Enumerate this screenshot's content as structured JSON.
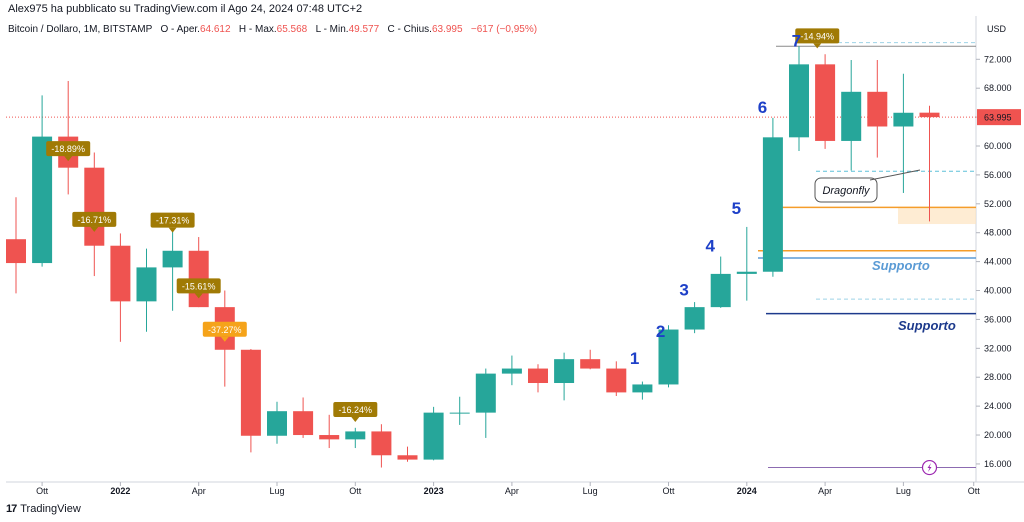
{
  "header": {
    "published": "Alex975 ha pubblicato su TradingView.com il Ago 24, 2024 07:48 UTC+2",
    "symbol": "Bitcoin / Dollaro, 1M, BITSTAMP",
    "open_label": "O - Aper.",
    "open": "64.612",
    "high_label": "H - Max.",
    "high": "65.568",
    "low_label": "L - Min.",
    "low": "49.577",
    "close_label": "C - Chius.",
    "close": "63.995",
    "change": "−617 (−0,95%)"
  },
  "footer": {
    "brand": "TradingView",
    "logo": "17"
  },
  "colors": {
    "up": "#26a69a",
    "down": "#ef5350",
    "wave_label": "#1e40c8",
    "pct_box": "#a07a05",
    "pct_box_bright": "#f5a31a",
    "support_light": "#5b9bd5",
    "support_dark": "#1d3a8c",
    "orange_line": "#f59d2a"
  },
  "chart_data": {
    "type": "candlestick",
    "title": "Bitcoin / Dollaro, 1M, BITSTAMP",
    "currency_label": "USD",
    "y_ticks": [
      "72.000",
      "68.000",
      "64.000",
      "60.000",
      "56.000",
      "52.000",
      "48.000",
      "44.000",
      "40.000",
      "36.000",
      "32.000",
      "28.000",
      "24.000",
      "20.000",
      "16.000"
    ],
    "y_tick_values": [
      72000,
      68000,
      64000,
      60000,
      56000,
      52000,
      48000,
      44000,
      40000,
      36000,
      32000,
      28000,
      24000,
      20000,
      16000
    ],
    "ylim": [
      13500,
      75500
    ],
    "x_labels": [
      "Ott",
      "2022",
      "Apr",
      "Lug",
      "Ott",
      "2023",
      "Apr",
      "Lug",
      "Ott",
      "2024",
      "Apr",
      "Lug",
      "Ott"
    ],
    "x_label_index": [
      1,
      4,
      7,
      10,
      13,
      16,
      19,
      22,
      25,
      28,
      31,
      34,
      37
    ],
    "bold_x_labels": [
      "2022",
      "2023",
      "2024"
    ],
    "current_price_label": "63.995",
    "current_price": 63995,
    "candles": [
      {
        "m": "2021-09",
        "o": 47100,
        "h": 52900,
        "l": 39600,
        "c": 43800
      },
      {
        "m": "2021-10",
        "o": 43800,
        "h": 67000,
        "l": 43300,
        "c": 61300
      },
      {
        "m": "2021-11",
        "o": 61300,
        "h": 69000,
        "l": 53300,
        "c": 57000
      },
      {
        "m": "2021-12",
        "o": 57000,
        "h": 59100,
        "l": 42000,
        "c": 46200
      },
      {
        "m": "2022-01",
        "o": 46200,
        "h": 47900,
        "l": 32900,
        "c": 38500
      },
      {
        "m": "2022-02",
        "o": 38500,
        "h": 45800,
        "l": 34300,
        "c": 43200
      },
      {
        "m": "2022-03",
        "o": 43200,
        "h": 48200,
        "l": 37200,
        "c": 45500
      },
      {
        "m": "2022-04",
        "o": 45500,
        "h": 47400,
        "l": 37700,
        "c": 37700
      },
      {
        "m": "2022-05",
        "o": 37700,
        "h": 40000,
        "l": 26700,
        "c": 31800
      },
      {
        "m": "2022-06",
        "o": 31800,
        "h": 31900,
        "l": 17600,
        "c": 19900
      },
      {
        "m": "2022-07",
        "o": 19900,
        "h": 24600,
        "l": 18800,
        "c": 23300
      },
      {
        "m": "2022-08",
        "o": 23300,
        "h": 25200,
        "l": 19600,
        "c": 20000
      },
      {
        "m": "2022-09",
        "o": 20000,
        "h": 22800,
        "l": 18200,
        "c": 19400
      },
      {
        "m": "2022-10",
        "o": 19400,
        "h": 21000,
        "l": 18200,
        "c": 20500
      },
      {
        "m": "2022-11",
        "o": 20500,
        "h": 21500,
        "l": 15500,
        "c": 17200
      },
      {
        "m": "2022-12",
        "o": 17200,
        "h": 18400,
        "l": 16300,
        "c": 16600
      },
      {
        "m": "2023-01",
        "o": 16600,
        "h": 23900,
        "l": 16500,
        "c": 23100
      },
      {
        "m": "2023-02",
        "o": 23100,
        "h": 25300,
        "l": 21400,
        "c": 23100
      },
      {
        "m": "2023-03",
        "o": 23100,
        "h": 29200,
        "l": 19600,
        "c": 28500
      },
      {
        "m": "2023-04",
        "o": 28500,
        "h": 31000,
        "l": 26900,
        "c": 29200
      },
      {
        "m": "2023-05",
        "o": 29200,
        "h": 29800,
        "l": 25900,
        "c": 27200
      },
      {
        "m": "2023-06",
        "o": 27200,
        "h": 31400,
        "l": 24800,
        "c": 30500
      },
      {
        "m": "2023-07",
        "o": 30500,
        "h": 31800,
        "l": 29100,
        "c": 29200
      },
      {
        "m": "2023-08",
        "o": 29200,
        "h": 30200,
        "l": 25400,
        "c": 25900
      },
      {
        "m": "2023-09",
        "o": 25900,
        "h": 27400,
        "l": 24900,
        "c": 27000
      },
      {
        "m": "2023-10",
        "o": 27000,
        "h": 35200,
        "l": 26600,
        "c": 34600
      },
      {
        "m": "2023-11",
        "o": 34600,
        "h": 38400,
        "l": 34100,
        "c": 37700
      },
      {
        "m": "2023-12",
        "o": 37700,
        "h": 44700,
        "l": 37600,
        "c": 42300
      },
      {
        "m": "2024-01",
        "o": 42300,
        "h": 48800,
        "l": 38600,
        "c": 42600
      },
      {
        "m": "2024-02",
        "o": 42600,
        "h": 63900,
        "l": 41900,
        "c": 61200
      },
      {
        "m": "2024-03",
        "o": 61200,
        "h": 73800,
        "l": 59300,
        "c": 71300
      },
      {
        "m": "2024-04",
        "o": 71300,
        "h": 72700,
        "l": 59600,
        "c": 60700
      },
      {
        "m": "2024-05",
        "o": 60700,
        "h": 71900,
        "l": 56600,
        "c": 67500
      },
      {
        "m": "2024-06",
        "o": 67500,
        "h": 71900,
        "l": 58400,
        "c": 62700
      },
      {
        "m": "2024-07",
        "o": 62700,
        "h": 70000,
        "l": 53500,
        "c": 64600
      },
      {
        "m": "2024-08",
        "o": 64612,
        "h": 65568,
        "l": 49577,
        "c": 63995
      }
    ],
    "drawdown_labels": [
      {
        "text": "-18.89%",
        "i": 2,
        "y": 58600,
        "style": "dark"
      },
      {
        "text": "-16.71%",
        "i": 3,
        "y": 48800,
        "style": "dark"
      },
      {
        "text": "-17.31%",
        "i": 6,
        "y": 48700,
        "style": "dark"
      },
      {
        "text": "-15.61%",
        "i": 7,
        "y": 39600,
        "style": "dark"
      },
      {
        "text": "-37.27%",
        "i": 8,
        "y": 33600,
        "style": "bright"
      },
      {
        "text": "-16.24%",
        "i": 13,
        "y": 22500,
        "style": "dark"
      },
      {
        "text": "-14.94%",
        "i": 30.7,
        "y": 74200,
        "style": "dark"
      }
    ],
    "wave_labels": [
      {
        "text": "1",
        "i": 23.7,
        "y": 29800
      },
      {
        "text": "2",
        "i": 24.7,
        "y": 33600
      },
      {
        "text": "3",
        "i": 25.6,
        "y": 39300
      },
      {
        "text": "4",
        "i": 26.6,
        "y": 45400
      },
      {
        "text": "5",
        "i": 27.6,
        "y": 50600
      },
      {
        "text": "6",
        "i": 28.6,
        "y": 64600
      },
      {
        "text": "7",
        "i": 29.9,
        "y": 73800
      }
    ],
    "annotations": {
      "dragonfly_label": "Dragonfly",
      "support_label_1": "Supporto",
      "support_label_2": "Supporto"
    },
    "levels": {
      "support_light": 44500,
      "support_dark": 36800,
      "orange_line": 45500,
      "orange_zone_top": 51500,
      "orange_zone_bottom": 49200,
      "dashed_top": 74300,
      "dashed_mid": 56500,
      "dashed_low": 38800,
      "purple_line": 15500,
      "grey_top": 73800
    }
  }
}
